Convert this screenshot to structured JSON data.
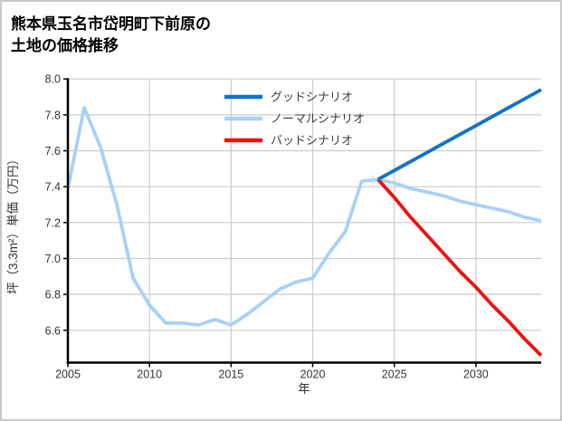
{
  "page": {
    "background": "#ffffff",
    "border_color": "#c8c8c8"
  },
  "title": "熊本県玉名市岱明町下前原の\n土地の価格推移",
  "chart_data": {
    "type": "line",
    "title": "熊本県玉名市岱明町下前原の土地の価格推移",
    "xlabel": "年",
    "ylabel": "坪（3.3m²）単価（万円）",
    "xlim": [
      2005,
      2034
    ],
    "ylim": [
      6.42,
      8.0
    ],
    "x_ticks": [
      2005,
      2010,
      2015,
      2020,
      2025,
      2030
    ],
    "y_ticks": [
      6.6,
      6.8,
      7.0,
      7.2,
      7.4,
      7.6,
      7.8,
      8.0
    ],
    "grid": true,
    "grid_color": "#cccccc",
    "axis_color": "#000000",
    "tick_label_color": "#333333",
    "legend_text_color": "#3d3d3d",
    "legend_position": "upper center, inside plot",
    "series": [
      {
        "id": "price-history",
        "legend_label": null,
        "color": "#a8d1f5",
        "x": [
          2005,
          2006,
          2007,
          2008,
          2009,
          2010,
          2011,
          2012,
          2013,
          2014,
          2015,
          2016,
          2017,
          2018,
          2019,
          2020,
          2021,
          2022,
          2023,
          2024
        ],
        "values": [
          7.39,
          7.84,
          7.62,
          7.3,
          6.89,
          6.74,
          6.64,
          6.64,
          6.63,
          6.66,
          6.63,
          6.69,
          6.76,
          6.83,
          6.87,
          6.89,
          7.03,
          7.15,
          7.43,
          7.44
        ]
      },
      {
        "id": "good-scenario",
        "legend_label": "グッドシナリオ",
        "color": "#1173c8",
        "x": [
          2024,
          2025,
          2026,
          2027,
          2028,
          2029,
          2030,
          2031,
          2032,
          2033,
          2034
        ],
        "values": [
          7.44,
          7.49,
          7.54,
          7.59,
          7.64,
          7.69,
          7.74,
          7.79,
          7.84,
          7.89,
          7.94
        ]
      },
      {
        "id": "normal-scenario",
        "legend_label": "ノーマルシナリオ",
        "color": "#a8d1f5",
        "x": [
          2024,
          2025,
          2026,
          2027,
          2028,
          2029,
          2030,
          2031,
          2032,
          2033,
          2034
        ],
        "values": [
          7.44,
          7.42,
          7.39,
          7.37,
          7.35,
          7.32,
          7.3,
          7.28,
          7.26,
          7.23,
          7.21
        ]
      },
      {
        "id": "bad-scenario",
        "legend_label": "バッドシナリオ",
        "color": "#ee1111",
        "x": [
          2024,
          2025,
          2026,
          2027,
          2028,
          2029,
          2030,
          2031,
          2032,
          2033,
          2034
        ],
        "values": [
          7.44,
          7.34,
          7.23,
          7.13,
          7.03,
          6.93,
          6.84,
          6.74,
          6.65,
          6.55,
          6.46
        ]
      }
    ]
  }
}
